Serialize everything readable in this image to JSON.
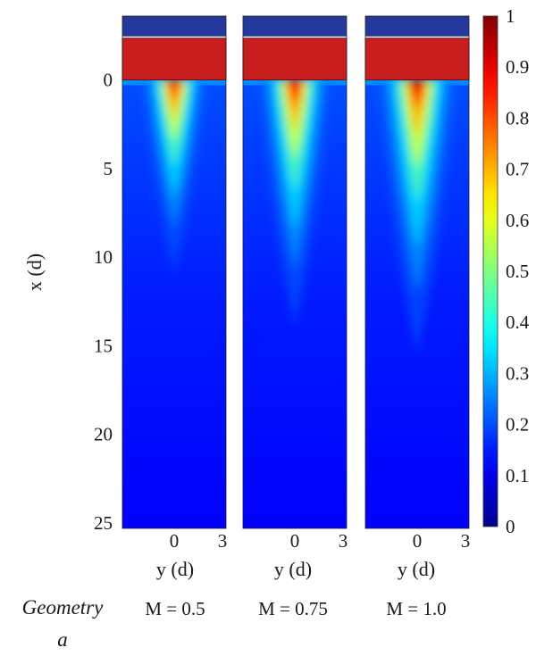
{
  "chart_data": {
    "type": "heatmap",
    "figure_label": [
      "Geometry",
      "a"
    ],
    "ylabel": "x (d)",
    "xlabel": "y (d)",
    "y_ticks": [
      0,
      5,
      10,
      15,
      20,
      25
    ],
    "y_range": [
      -3.6,
      25.3
    ],
    "x_ticks": [
      0,
      3
    ],
    "x_range": [
      -3,
      3
    ],
    "colorbar": {
      "min": 0,
      "max": 1,
      "ticks": [
        0,
        0.1,
        0.2,
        0.3,
        0.4,
        0.5,
        0.6,
        0.7,
        0.8,
        0.9,
        1
      ],
      "colormap": "jet",
      "colors": [
        "#00008f",
        "#0000ff",
        "#0080ff",
        "#00ffff",
        "#80ff80",
        "#ffff00",
        "#ff8000",
        "#ff0000",
        "#800000"
      ]
    },
    "panels": [
      {
        "caption": "M = 0.5",
        "tip_intensity": 0.9,
        "plume_length": 7,
        "plume_halfwidth": 0.9,
        "background": 0.12
      },
      {
        "caption": "M = 0.75",
        "tip_intensity": 0.95,
        "plume_length": 9,
        "plume_halfwidth": 1.0,
        "background": 0.12
      },
      {
        "caption": "M = 1.0",
        "tip_intensity": 1.0,
        "plume_length": 10,
        "plume_halfwidth": 1.1,
        "background": 0.12
      }
    ]
  }
}
